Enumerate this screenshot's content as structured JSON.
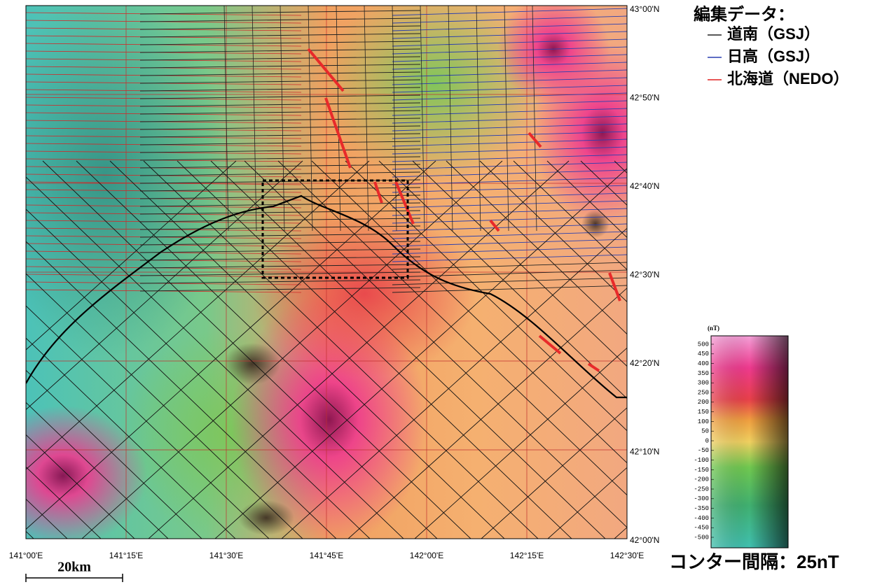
{
  "map": {
    "lat_labels": [
      "43°00'N",
      "42°50'N",
      "42°40'N",
      "42°30'N",
      "42°20'N",
      "42°10'N",
      "42°00'N"
    ],
    "lon_labels": [
      "141°00'E",
      "141°15'E",
      "141°30'E",
      "141°45'E",
      "142°00'E",
      "142°15'E",
      "142°30'E"
    ]
  },
  "legend": {
    "title": "編集データ：",
    "entries": [
      {
        "name": "道南（GSJ）",
        "color": "#222222"
      },
      {
        "name": "日高（GSJ）",
        "color": "#2a3fb0"
      },
      {
        "name": "北海道（NEDO）",
        "color": "#e02020"
      }
    ]
  },
  "colorbar": {
    "unit": "(nT)",
    "range": [
      -500,
      500
    ],
    "ticks": [
      500,
      450,
      400,
      350,
      300,
      250,
      200,
      150,
      100,
      50,
      0,
      -50,
      -100,
      -150,
      -200,
      -250,
      -300,
      -350,
      -400,
      -450,
      -500
    ]
  },
  "scale_bar": "20km",
  "contour_interval": "コンター間隔：25nT"
}
